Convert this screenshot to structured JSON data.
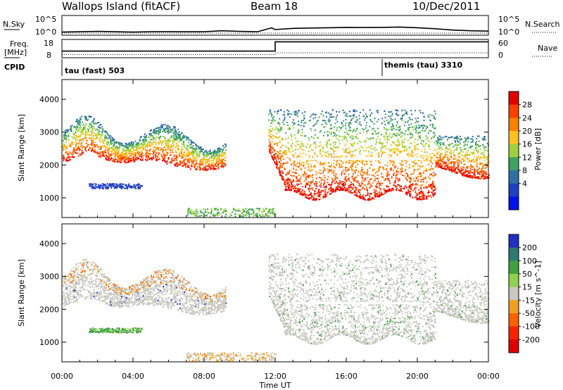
{
  "header": {
    "station": "Wallops Island (fitACF)",
    "beam": "Beam 18",
    "date": "10/Dec/2011"
  },
  "strip_labels": {
    "nsky": "N.Sky",
    "nsearch": "N.Search",
    "freq_line1": "Freq.",
    "freq_line2": "[MHz]",
    "nave": "Nave",
    "cpid": "CPID"
  },
  "cpid_segments": [
    {
      "label": "tau (fast) 503",
      "start_hour": 0
    },
    {
      "label": "themis (tau) 3310",
      "start_hour": 18
    }
  ],
  "time_axis": {
    "label": "Time UT",
    "ticks": [
      "00:00",
      "04:00",
      "08:00",
      "12:00",
      "16:00",
      "20:00",
      "00:00"
    ]
  },
  "chart_data": [
    {
      "type": "line",
      "name": "noise",
      "yticks_left": [
        "10^5",
        "10^0"
      ],
      "yticks_right": [
        "10^5",
        "10^0"
      ],
      "x_hours": [
        0,
        1,
        2,
        3,
        4,
        5,
        6,
        7,
        8,
        9,
        10,
        11,
        11.8,
        12,
        13,
        14,
        15,
        16,
        17,
        18,
        19,
        20,
        21,
        22,
        23,
        24
      ],
      "level": [
        0.1,
        0.12,
        0.14,
        0.12,
        0.1,
        0.12,
        0.13,
        0.12,
        0.12,
        0.18,
        0.14,
        0.12,
        0.35,
        0.25,
        0.32,
        0.34,
        0.36,
        0.38,
        0.37,
        0.38,
        0.4,
        0.36,
        0.3,
        0.22,
        0.18,
        0.16
      ]
    },
    {
      "type": "line",
      "name": "frequency-nave",
      "yticks_left": [
        "18",
        "8"
      ],
      "yticks_right": [
        "60",
        "0"
      ],
      "freq_segments": [
        {
          "x_start_hour": 0,
          "x_end_hour": 12,
          "level": 0.35
        },
        {
          "x_start_hour": 12,
          "x_end_hour": 24,
          "level": 0.9
        }
      ],
      "nave_segments": [
        {
          "x_start_hour": 0,
          "x_end_hour": 12,
          "level": 0.15
        },
        {
          "x_start_hour": 12,
          "x_end_hour": 24,
          "level": 0.25
        }
      ]
    },
    {
      "type": "heatmap",
      "name": "power",
      "ylabel": "Slant Range [km]",
      "ylim": [
        400,
        4600
      ],
      "yticks": [
        1000,
        2000,
        3000,
        4000
      ],
      "colorbar": {
        "label": "Power [dB]",
        "ticks": [
          "28",
          "24",
          "20",
          "16",
          "12",
          "8",
          "4"
        ],
        "colors": [
          "#e00000",
          "#ff4000",
          "#ff8000",
          "#ffc020",
          "#a0d040",
          "#40a060",
          "#3070a0",
          "#2040c0",
          "#0010f0"
        ]
      }
    },
    {
      "type": "heatmap",
      "name": "velocity",
      "ylabel": "Slant Range [km]",
      "ylim": [
        400,
        4600
      ],
      "yticks": [
        1000,
        2000,
        3000,
        4000
      ],
      "colorbar": {
        "label": "Velocity [m s^-1]",
        "ticks": [
          "200",
          "100",
          "50",
          "15",
          "-15",
          "-50",
          "-100",
          "-200"
        ],
        "colors": [
          "#2030c0",
          "#307870",
          "#40a040",
          "#90d050",
          "#c8c8c0",
          "#f0a020",
          "#ff6000",
          "#ff2000",
          "#e00000"
        ]
      }
    }
  ]
}
